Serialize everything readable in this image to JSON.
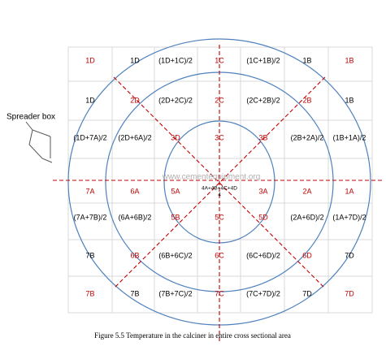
{
  "diagram": {
    "annotation": "Spreader box",
    "watermark": "www.cementequipment.org",
    "caption": "Figure 5.5 Temperature in the calciner in entire cross sectional area",
    "center_sub": "4",
    "rows": [
      [
        {
          "label": "1D",
          "color": "#c00000"
        },
        {
          "label": "1D",
          "color": "#000"
        },
        {
          "label": "(1D+1C)/2",
          "color": "#000"
        },
        {
          "label": "1C",
          "color": "#c00000"
        },
        {
          "label": "(1C+1B)/2",
          "color": "#000"
        },
        {
          "label": "1B",
          "color": "#000"
        },
        {
          "label": "1B",
          "color": "#c00000"
        }
      ],
      [
        {
          "label": "1D",
          "color": "#000"
        },
        {
          "label": "2D",
          "color": "#c00000"
        },
        {
          "label": "(2D+2C)/2",
          "color": "#000"
        },
        {
          "label": "2C",
          "color": "#c00000"
        },
        {
          "label": "(2C+2B)/2",
          "color": "#000"
        },
        {
          "label": "2B",
          "color": "#c00000"
        },
        {
          "label": "1B",
          "color": "#000"
        }
      ],
      [
        {
          "label": "(1D+7A)/2",
          "color": "#000"
        },
        {
          "label": "(2D+6A)/2",
          "color": "#000"
        },
        {
          "label": "3D",
          "color": "#c00000"
        },
        {
          "label": "3C",
          "color": "#c00000"
        },
        {
          "label": "3B",
          "color": "#c00000"
        },
        {
          "label": "(2B+2A)/2",
          "color": "#000"
        },
        {
          "label": "(1B+1A)/2",
          "color": "#000"
        }
      ],
      [
        {
          "label": "7A",
          "color": "#c00000"
        },
        {
          "label": "6A",
          "color": "#c00000"
        },
        {
          "label": "5A",
          "color": "#c00000"
        },
        {
          "label": "4A+4B+4C+4D",
          "color": "#000"
        },
        {
          "label": "3A",
          "color": "#c00000"
        },
        {
          "label": "2A",
          "color": "#c00000"
        },
        {
          "label": "1A",
          "color": "#c00000"
        }
      ],
      [
        {
          "label": "(7A+7B)/2",
          "color": "#000"
        },
        {
          "label": "(6A+6B)/2",
          "color": "#000"
        },
        {
          "label": "5B",
          "color": "#c00000"
        },
        {
          "label": "5C",
          "color": "#c00000"
        },
        {
          "label": "5D",
          "color": "#c00000"
        },
        {
          "label": "(2A+6D)/2",
          "color": "#000"
        },
        {
          "label": "(1A+7D)/2",
          "color": "#000"
        }
      ],
      [
        {
          "label": "7B",
          "color": "#000"
        },
        {
          "label": "6B",
          "color": "#c00000"
        },
        {
          "label": "(6B+6C)/2",
          "color": "#000"
        },
        {
          "label": "6C",
          "color": "#c00000"
        },
        {
          "label": "(6C+6D)/2",
          "color": "#000"
        },
        {
          "label": "6D",
          "color": "#c00000"
        },
        {
          "label": "7D",
          "color": "#000"
        }
      ],
      [
        {
          "label": "7B",
          "color": "#c00000"
        },
        {
          "label": "7B",
          "color": "#000"
        },
        {
          "label": "(7B+7C)/2",
          "color": "#000"
        },
        {
          "label": "7C",
          "color": "#c00000"
        },
        {
          "label": "(7C+7D)/2",
          "color": "#000"
        },
        {
          "label": "7D",
          "color": "#000"
        },
        {
          "label": "7D",
          "color": "#c00000"
        }
      ]
    ]
  }
}
